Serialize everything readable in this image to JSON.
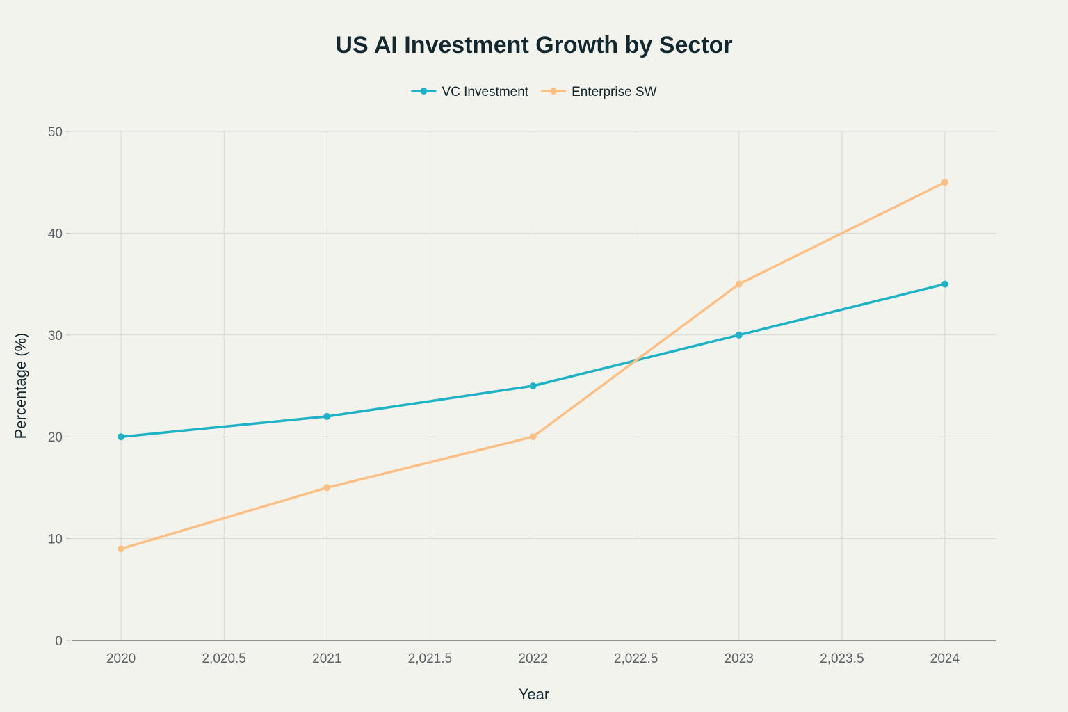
{
  "chart_data": {
    "type": "line",
    "title": "US AI Investment Growth by Sector",
    "xlabel": "Year",
    "ylabel": "Percentage (%)",
    "x": [
      2020,
      2021,
      2022,
      2023,
      2024
    ],
    "xlim": [
      2019.76,
      2024.25
    ],
    "ylim": [
      0,
      50
    ],
    "x_ticks": [
      2020,
      2020.5,
      2021,
      2021.5,
      2022,
      2022.5,
      2023,
      2023.5,
      2024
    ],
    "x_tick_labels": [
      "2020",
      "2,020.5",
      "2021",
      "2,021.5",
      "2022",
      "2,022.5",
      "2023",
      "2,023.5",
      "2024"
    ],
    "y_ticks": [
      0,
      10,
      20,
      30,
      40,
      50
    ],
    "y_tick_labels": [
      "0",
      "10",
      "20",
      "30",
      "40",
      "50"
    ],
    "grid": true,
    "legend_position": "top-center",
    "series": [
      {
        "name": "VC Investment",
        "color": "#1fb1c6",
        "values": [
          20,
          22,
          25,
          30,
          35
        ]
      },
      {
        "name": "Enterprise SW",
        "color": "#fdbf84",
        "values": [
          9,
          15,
          20,
          35,
          45
        ]
      }
    ]
  }
}
